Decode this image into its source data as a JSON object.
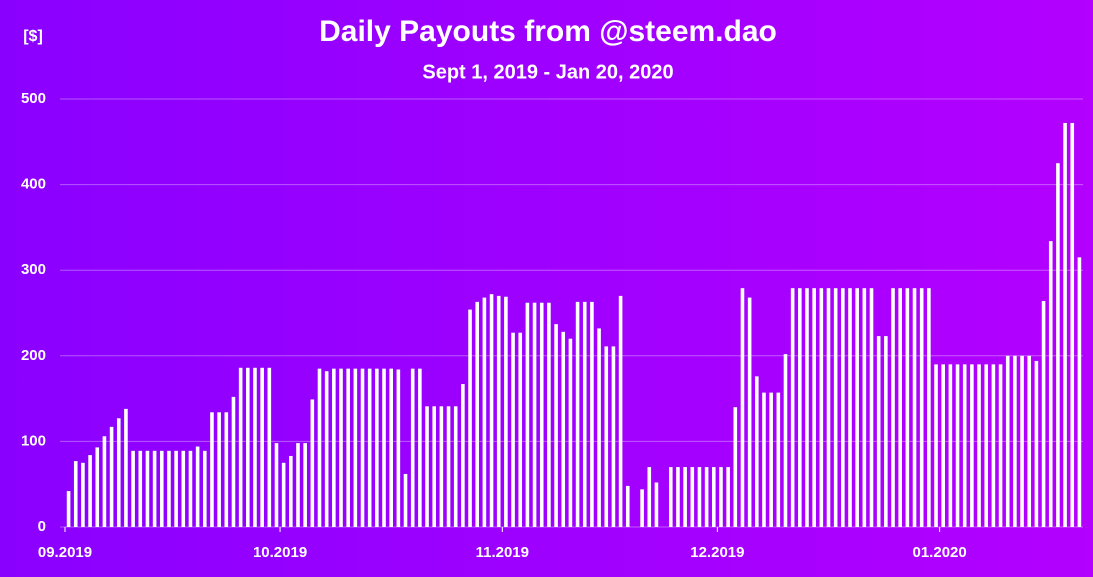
{
  "chart_data": {
    "type": "bar",
    "title": "Daily Payouts from @steem.dao",
    "subtitle": "Sept 1, 2019 - Jan 20, 2020",
    "y_label": "[$]",
    "categories": [
      "09.2019",
      null,
      null,
      null,
      null,
      null,
      null,
      null,
      null,
      null,
      null,
      null,
      null,
      null,
      null,
      null,
      null,
      null,
      null,
      null,
      null,
      null,
      null,
      null,
      null,
      null,
      null,
      null,
      null,
      null,
      "10.2019",
      null,
      null,
      null,
      null,
      null,
      null,
      null,
      null,
      null,
      null,
      null,
      null,
      null,
      null,
      null,
      null,
      null,
      null,
      null,
      null,
      null,
      null,
      null,
      null,
      null,
      null,
      null,
      null,
      null,
      null,
      "11.2019",
      null,
      null,
      null,
      null,
      null,
      null,
      null,
      null,
      null,
      null,
      null,
      null,
      null,
      null,
      null,
      null,
      null,
      null,
      null,
      null,
      null,
      null,
      null,
      null,
      null,
      null,
      null,
      null,
      null,
      "12.2019",
      null,
      null,
      null,
      null,
      null,
      null,
      null,
      null,
      null,
      null,
      null,
      null,
      null,
      null,
      null,
      null,
      null,
      null,
      null,
      null,
      null,
      null,
      null,
      null,
      null,
      null,
      null,
      null,
      null,
      null,
      "01.2020",
      null,
      null,
      null,
      null,
      null,
      null,
      null,
      null,
      null,
      null,
      null,
      null,
      null,
      null,
      null,
      null,
      null,
      null,
      null
    ],
    "values": [
      42,
      77,
      75,
      84,
      93,
      106,
      117,
      127,
      138,
      89,
      89,
      89,
      89,
      89,
      89,
      89,
      89,
      89,
      94,
      89,
      134,
      134,
      134,
      152,
      186,
      186,
      186,
      186,
      186,
      98,
      75,
      83,
      98,
      98,
      149,
      185,
      182,
      185,
      185,
      185,
      185,
      185,
      185,
      185,
      185,
      185,
      184,
      62,
      185,
      185,
      141,
      141,
      141,
      141,
      141,
      167,
      254,
      263,
      268,
      272,
      270,
      269,
      227,
      227,
      262,
      262,
      262,
      262,
      237,
      228,
      220,
      263,
      263,
      263,
      232,
      211,
      211,
      270,
      48,
      0,
      44,
      70,
      52,
      0,
      70,
      70,
      70,
      70,
      70,
      70,
      70,
      70,
      70,
      140,
      279,
      268,
      176,
      157,
      157,
      157,
      202,
      279,
      279,
      279,
      279,
      279,
      279,
      279,
      279,
      279,
      279,
      279,
      279,
      223,
      223,
      279,
      279,
      279,
      279,
      279,
      279,
      190,
      190,
      190,
      190,
      190,
      190,
      190,
      190,
      190,
      190,
      200,
      200,
      200,
      200,
      194,
      264,
      334,
      425,
      472,
      472,
      315
    ],
    "color": "#ffffff",
    "ylim": [
      0,
      500
    ],
    "yticks": [
      0,
      100,
      200,
      300,
      400,
      500
    ],
    "grid": true
  }
}
